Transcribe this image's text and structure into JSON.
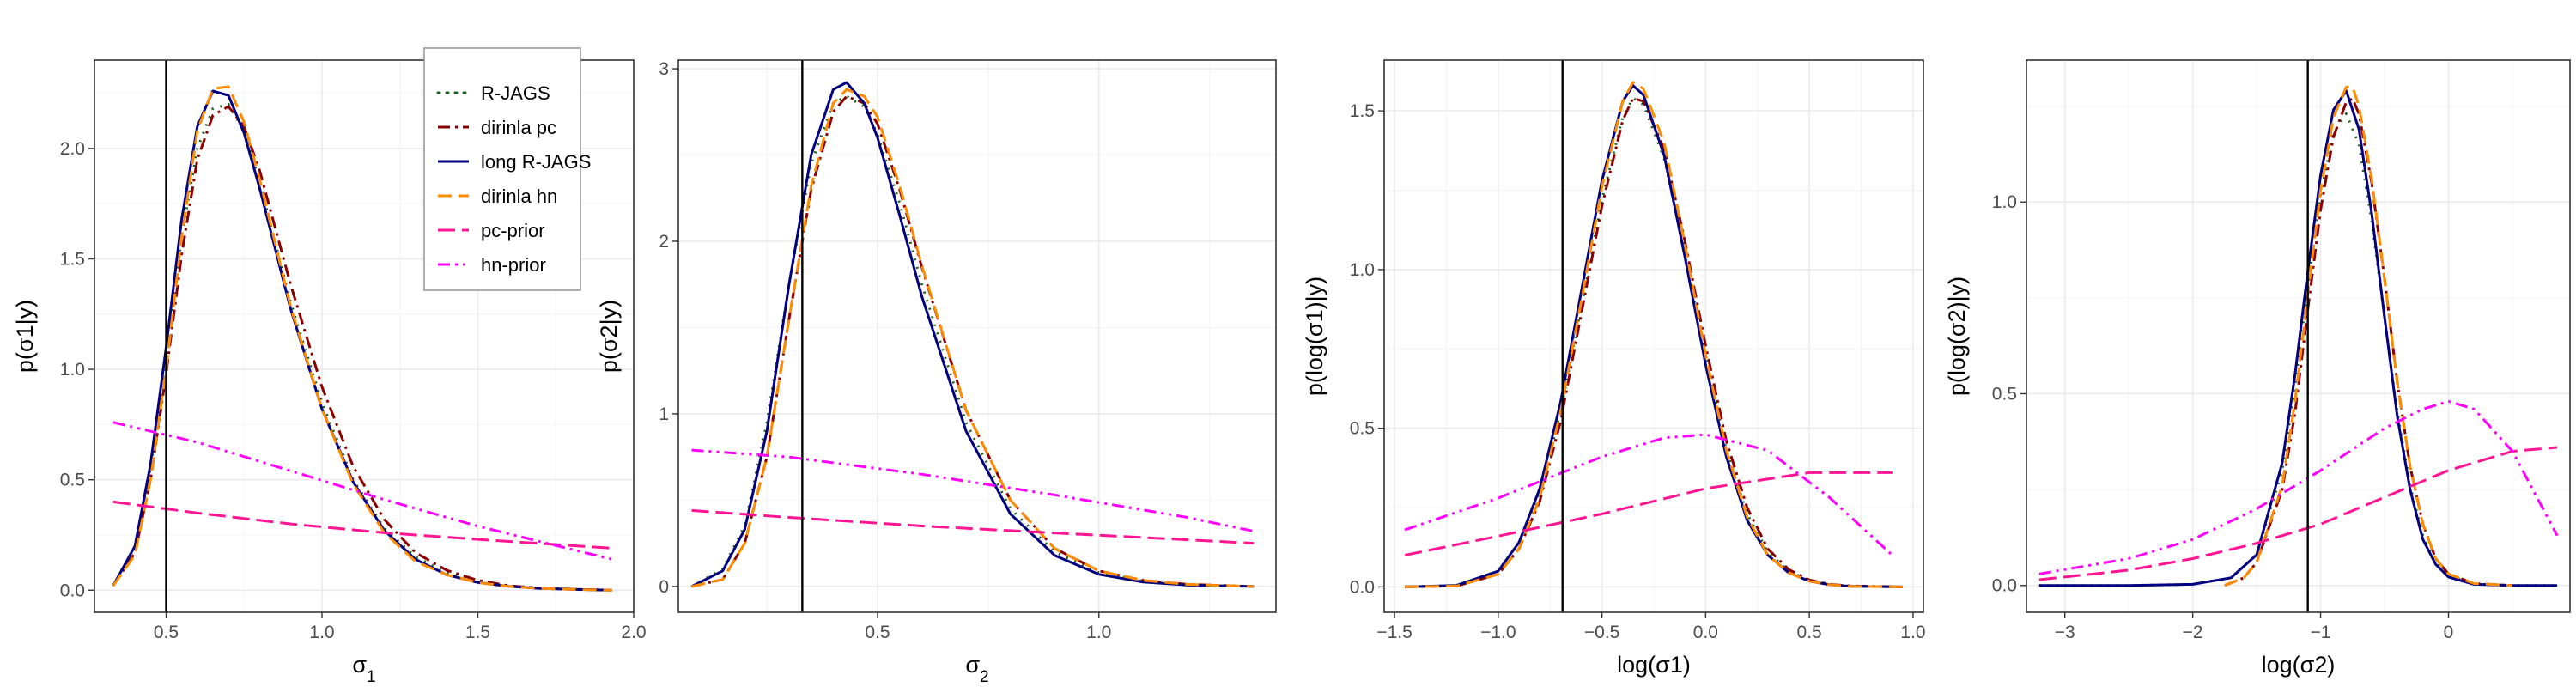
{
  "series_styles": [
    {
      "name": "R-JAGS",
      "color": "#1b5e20",
      "dash": "2 8",
      "width": 3
    },
    {
      "name": "dirinla pc",
      "color": "#8b0000",
      "dash": "14 6 3 6",
      "width": 3
    },
    {
      "name": "long R-JAGS",
      "color": "#000080",
      "dash": "",
      "width": 3
    },
    {
      "name": "dirinla hn",
      "color": "#ff8c00",
      "dash": "16 8",
      "width": 3
    },
    {
      "name": "pc-prior",
      "color": "#ff1493",
      "dash": "20 8",
      "width": 3
    },
    {
      "name": "hn-prior",
      "color": "#ff00ff",
      "dash": "14 6 3 6 3 6",
      "width": 3
    }
  ],
  "chart_data": [
    {
      "type": "line",
      "xlabel_main": "σ",
      "xlabel_sub": "1",
      "ylabel": "p(σ1|y)",
      "xlim": [
        0.27,
        2.0
      ],
      "ylim": [
        -0.1,
        2.4
      ],
      "xticks": [
        0.5,
        1.0,
        1.5,
        2.0
      ],
      "xtick_labels": [
        "0.5",
        "1.0",
        "1.5",
        "2.0"
      ],
      "yticks": [
        0.0,
        0.5,
        1.0,
        1.5,
        2.0
      ],
      "ytick_labels": [
        "0.0",
        "0.5",
        "1.0",
        "1.5",
        "2.0"
      ],
      "vline": 0.5,
      "legend": {
        "position": "top-right",
        "entries": [
          "R-JAGS",
          "dirinla pc",
          "long R-JAGS",
          "dirinla hn",
          "pc-prior",
          "hn-prior"
        ]
      },
      "series": [
        {
          "name": "R-JAGS",
          "x": [
            0.33,
            0.4,
            0.45,
            0.5,
            0.55,
            0.6,
            0.65,
            0.7,
            0.75,
            0.8,
            0.9,
            1.0,
            1.1,
            1.2,
            1.3,
            1.4,
            1.5,
            1.6,
            1.7,
            1.8,
            1.93
          ],
          "y": [
            0.02,
            0.2,
            0.55,
            1.05,
            1.6,
            2.0,
            2.18,
            2.2,
            2.08,
            1.85,
            1.3,
            0.85,
            0.5,
            0.28,
            0.15,
            0.08,
            0.04,
            0.02,
            0.01,
            0.005,
            0.0
          ]
        },
        {
          "name": "dirinla pc",
          "x": [
            0.33,
            0.4,
            0.45,
            0.5,
            0.55,
            0.6,
            0.65,
            0.7,
            0.75,
            0.8,
            0.9,
            1.0,
            1.1,
            1.2,
            1.3,
            1.4,
            1.5,
            1.6,
            1.7,
            1.8,
            1.93
          ],
          "y": [
            0.02,
            0.17,
            0.5,
            0.98,
            1.52,
            1.95,
            2.15,
            2.19,
            2.1,
            1.9,
            1.38,
            0.92,
            0.56,
            0.32,
            0.17,
            0.09,
            0.045,
            0.02,
            0.01,
            0.005,
            0.0
          ]
        },
        {
          "name": "long R-JAGS",
          "x": [
            0.33,
            0.4,
            0.45,
            0.5,
            0.55,
            0.6,
            0.65,
            0.7,
            0.75,
            0.8,
            0.9,
            1.0,
            1.1,
            1.2,
            1.3,
            1.4,
            1.5,
            1.6,
            1.7,
            1.8,
            1.93
          ],
          "y": [
            0.02,
            0.2,
            0.57,
            1.1,
            1.68,
            2.1,
            2.26,
            2.24,
            2.07,
            1.82,
            1.27,
            0.82,
            0.49,
            0.27,
            0.14,
            0.07,
            0.035,
            0.018,
            0.008,
            0.004,
            0.0
          ]
        },
        {
          "name": "dirinla hn",
          "x": [
            0.33,
            0.4,
            0.45,
            0.5,
            0.55,
            0.6,
            0.65,
            0.7,
            0.75,
            0.8,
            0.9,
            1.0,
            1.1,
            1.2,
            1.3,
            1.4,
            1.5,
            1.6,
            1.7,
            1.8,
            1.93
          ],
          "y": [
            0.02,
            0.16,
            0.5,
            1.0,
            1.6,
            2.08,
            2.27,
            2.28,
            2.12,
            1.86,
            1.28,
            0.82,
            0.48,
            0.26,
            0.13,
            0.07,
            0.035,
            0.017,
            0.008,
            0.004,
            0.0
          ]
        },
        {
          "name": "pc-prior",
          "x": [
            0.33,
            0.6,
            0.9,
            1.2,
            1.5,
            1.93
          ],
          "y": [
            0.4,
            0.35,
            0.3,
            0.26,
            0.23,
            0.19
          ]
        },
        {
          "name": "hn-prior",
          "x": [
            0.33,
            0.6,
            0.9,
            1.2,
            1.5,
            1.93
          ],
          "y": [
            0.76,
            0.67,
            0.54,
            0.41,
            0.29,
            0.14
          ]
        }
      ]
    },
    {
      "type": "line",
      "xlabel_main": "σ",
      "xlabel_sub": "2",
      "ylabel": "p(σ2|y)",
      "xlim": [
        0.05,
        1.4
      ],
      "ylim": [
        -0.15,
        3.05
      ],
      "xticks": [
        0.5,
        1.0
      ],
      "xtick_labels": [
        "0.5",
        "1.0"
      ],
      "yticks": [
        0,
        1,
        2,
        3
      ],
      "ytick_labels": [
        "0",
        "1",
        "2",
        "3"
      ],
      "vline": 0.33,
      "legend": null,
      "series": [
        {
          "name": "R-JAGS",
          "x": [
            0.08,
            0.15,
            0.2,
            0.25,
            0.3,
            0.35,
            0.4,
            0.43,
            0.47,
            0.5,
            0.55,
            0.6,
            0.7,
            0.8,
            0.9,
            1.0,
            1.1,
            1.2,
            1.35
          ],
          "y": [
            0.0,
            0.1,
            0.35,
            0.95,
            1.75,
            2.45,
            2.8,
            2.84,
            2.78,
            2.62,
            2.22,
            1.75,
            0.95,
            0.45,
            0.2,
            0.08,
            0.03,
            0.01,
            0.0
          ]
        },
        {
          "name": "dirinla pc",
          "x": [
            0.08,
            0.15,
            0.2,
            0.25,
            0.3,
            0.35,
            0.4,
            0.43,
            0.47,
            0.5,
            0.55,
            0.6,
            0.7,
            0.8,
            0.9,
            1.0,
            1.1,
            1.2,
            1.35
          ],
          "y": [
            0.0,
            0.04,
            0.25,
            0.75,
            1.55,
            2.3,
            2.75,
            2.84,
            2.8,
            2.68,
            2.3,
            1.85,
            1.02,
            0.5,
            0.22,
            0.09,
            0.035,
            0.012,
            0.0
          ]
        },
        {
          "name": "long R-JAGS",
          "x": [
            0.08,
            0.15,
            0.2,
            0.25,
            0.3,
            0.35,
            0.4,
            0.43,
            0.47,
            0.5,
            0.55,
            0.6,
            0.7,
            0.8,
            0.9,
            1.0,
            1.1,
            1.2,
            1.35
          ],
          "y": [
            0.0,
            0.09,
            0.33,
            0.9,
            1.75,
            2.5,
            2.88,
            2.92,
            2.8,
            2.6,
            2.15,
            1.68,
            0.9,
            0.42,
            0.18,
            0.07,
            0.025,
            0.008,
            0.0
          ]
        },
        {
          "name": "dirinla hn",
          "x": [
            0.08,
            0.15,
            0.2,
            0.25,
            0.3,
            0.35,
            0.4,
            0.43,
            0.47,
            0.5,
            0.55,
            0.6,
            0.7,
            0.8,
            0.9,
            1.0,
            1.1,
            1.2,
            1.35
          ],
          "y": [
            0.0,
            0.04,
            0.25,
            0.75,
            1.55,
            2.32,
            2.8,
            2.88,
            2.84,
            2.72,
            2.32,
            1.86,
            1.02,
            0.5,
            0.22,
            0.09,
            0.035,
            0.012,
            0.0
          ]
        },
        {
          "name": "pc-prior",
          "x": [
            0.08,
            0.3,
            0.6,
            0.9,
            1.2,
            1.35
          ],
          "y": [
            0.44,
            0.4,
            0.35,
            0.31,
            0.27,
            0.25
          ]
        },
        {
          "name": "hn-prior",
          "x": [
            0.08,
            0.3,
            0.6,
            0.9,
            1.2,
            1.35
          ],
          "y": [
            0.79,
            0.75,
            0.65,
            0.53,
            0.4,
            0.32
          ]
        }
      ]
    },
    {
      "type": "line",
      "xlabel_main": "log(σ1)",
      "xlabel_sub": "",
      "ylabel": "p(log(σ1)|y)",
      "xlim": [
        -1.55,
        1.05
      ],
      "ylim": [
        -0.08,
        1.66
      ],
      "xticks": [
        -1.5,
        -1.0,
        -0.5,
        0.0,
        0.5,
        1.0
      ],
      "xtick_labels": [
        "−1.5",
        "−1.0",
        "−0.5",
        "0.0",
        "0.5",
        "1.0"
      ],
      "yticks": [
        0.0,
        0.5,
        1.0,
        1.5
      ],
      "ytick_labels": [
        "0.0",
        "0.5",
        "1.0",
        "1.5"
      ],
      "vline": -0.69,
      "legend": null,
      "series": [
        {
          "name": "R-JAGS",
          "x": [
            -1.45,
            -1.2,
            -1.0,
            -0.9,
            -0.8,
            -0.7,
            -0.6,
            -0.5,
            -0.4,
            -0.35,
            -0.3,
            -0.2,
            -0.1,
            0.0,
            0.1,
            0.2,
            0.3,
            0.4,
            0.5,
            0.6,
            0.7,
            0.95
          ],
          "y": [
            0.0,
            0.005,
            0.05,
            0.14,
            0.3,
            0.55,
            0.88,
            1.22,
            1.48,
            1.54,
            1.52,
            1.35,
            1.05,
            0.72,
            0.43,
            0.23,
            0.11,
            0.05,
            0.02,
            0.008,
            0.003,
            0.0
          ]
        },
        {
          "name": "dirinla pc",
          "x": [
            -1.45,
            -1.2,
            -1.0,
            -0.9,
            -0.8,
            -0.7,
            -0.6,
            -0.5,
            -0.4,
            -0.35,
            -0.3,
            -0.2,
            -0.1,
            0.0,
            0.1,
            0.2,
            0.3,
            0.4,
            0.5,
            0.6,
            0.7,
            0.95
          ],
          "y": [
            0.0,
            0.003,
            0.04,
            0.12,
            0.27,
            0.52,
            0.86,
            1.2,
            1.47,
            1.54,
            1.53,
            1.38,
            1.09,
            0.76,
            0.46,
            0.25,
            0.12,
            0.055,
            0.022,
            0.008,
            0.003,
            0.0
          ]
        },
        {
          "name": "long R-JAGS",
          "x": [
            -1.45,
            -1.2,
            -1.0,
            -0.9,
            -0.8,
            -0.7,
            -0.6,
            -0.5,
            -0.4,
            -0.35,
            -0.3,
            -0.2,
            -0.1,
            0.0,
            0.1,
            0.2,
            0.3,
            0.4,
            0.5,
            0.6,
            0.7,
            0.95
          ],
          "y": [
            0.0,
            0.005,
            0.05,
            0.14,
            0.31,
            0.58,
            0.93,
            1.28,
            1.53,
            1.58,
            1.55,
            1.36,
            1.04,
            0.7,
            0.41,
            0.21,
            0.1,
            0.045,
            0.018,
            0.007,
            0.002,
            0.0
          ]
        },
        {
          "name": "dirinla hn",
          "x": [
            -1.45,
            -1.2,
            -1.0,
            -0.9,
            -0.8,
            -0.7,
            -0.6,
            -0.5,
            -0.4,
            -0.35,
            -0.3,
            -0.2,
            -0.1,
            0.0,
            0.1,
            0.2,
            0.3,
            0.4,
            0.5,
            0.6,
            0.7,
            0.95
          ],
          "y": [
            0.0,
            0.003,
            0.04,
            0.12,
            0.28,
            0.55,
            0.9,
            1.26,
            1.53,
            1.59,
            1.57,
            1.4,
            1.08,
            0.73,
            0.43,
            0.22,
            0.1,
            0.045,
            0.018,
            0.007,
            0.002,
            0.0
          ]
        },
        {
          "name": "pc-prior",
          "x": [
            -1.45,
            -1.0,
            -0.5,
            0.0,
            0.5,
            0.9
          ],
          "y": [
            0.1,
            0.16,
            0.23,
            0.31,
            0.36,
            0.36
          ]
        },
        {
          "name": "hn-prior",
          "x": [
            -1.45,
            -1.0,
            -0.5,
            -0.2,
            0.0,
            0.3,
            0.6,
            0.9
          ],
          "y": [
            0.18,
            0.28,
            0.41,
            0.47,
            0.48,
            0.43,
            0.28,
            0.1
          ]
        }
      ]
    },
    {
      "type": "line",
      "xlabel_main": "log(σ2)",
      "xlabel_sub": "",
      "ylabel": "p(log(σ2)|y)",
      "xlim": [
        -3.3,
        0.95
      ],
      "ylim": [
        -0.07,
        1.37
      ],
      "xticks": [
        -3,
        -2,
        -1,
        0
      ],
      "xtick_labels": [
        "−3",
        "−2",
        "−1",
        "0"
      ],
      "yticks": [
        0.0,
        0.5,
        1.0
      ],
      "ytick_labels": [
        "0.0",
        "0.5",
        "1.0"
      ],
      "vline": -1.1,
      "legend": null,
      "series": [
        {
          "name": "R-JAGS",
          "x": [
            -3.2,
            -2.5,
            -2.0,
            -1.7,
            -1.5,
            -1.3,
            -1.2,
            -1.1,
            -1.0,
            -0.9,
            -0.8,
            -0.7,
            -0.6,
            -0.5,
            -0.4,
            -0.3,
            -0.2,
            -0.1,
            0.0,
            0.2,
            0.5,
            0.85
          ],
          "y": [
            0.0,
            0.0,
            0.003,
            0.02,
            0.08,
            0.3,
            0.52,
            0.78,
            1.02,
            1.18,
            1.23,
            1.15,
            0.95,
            0.7,
            0.45,
            0.26,
            0.13,
            0.06,
            0.025,
            0.004,
            0.0,
            0.0
          ]
        },
        {
          "name": "dirinla pc",
          "x": [
            -1.75,
            -1.6,
            -1.5,
            -1.3,
            -1.2,
            -1.1,
            -1.0,
            -0.9,
            -0.8,
            -0.75,
            -0.7,
            -0.6,
            -0.5,
            -0.4,
            -0.3,
            -0.2,
            -0.1,
            0.0,
            0.2,
            0.5
          ],
          "y": [
            0.0,
            0.02,
            0.06,
            0.25,
            0.45,
            0.72,
            0.98,
            1.17,
            1.26,
            1.27,
            1.23,
            1.05,
            0.8,
            0.53,
            0.31,
            0.16,
            0.07,
            0.03,
            0.005,
            0.0
          ]
        },
        {
          "name": "long R-JAGS",
          "x": [
            -3.2,
            -2.5,
            -2.0,
            -1.7,
            -1.5,
            -1.3,
            -1.2,
            -1.1,
            -1.0,
            -0.9,
            -0.8,
            -0.7,
            -0.6,
            -0.5,
            -0.4,
            -0.3,
            -0.2,
            -0.1,
            0.0,
            0.2,
            0.5,
            0.85
          ],
          "y": [
            0.0,
            0.0,
            0.003,
            0.02,
            0.08,
            0.32,
            0.55,
            0.82,
            1.07,
            1.24,
            1.29,
            1.19,
            0.97,
            0.7,
            0.44,
            0.25,
            0.12,
            0.055,
            0.022,
            0.003,
            0.0,
            0.0
          ]
        },
        {
          "name": "dirinla hn",
          "x": [
            -1.75,
            -1.6,
            -1.5,
            -1.3,
            -1.2,
            -1.1,
            -1.0,
            -0.9,
            -0.8,
            -0.75,
            -0.7,
            -0.6,
            -0.5,
            -0.4,
            -0.3,
            -0.2,
            -0.1,
            0.0,
            0.2,
            0.5
          ],
          "y": [
            0.0,
            0.02,
            0.06,
            0.26,
            0.48,
            0.76,
            1.03,
            1.22,
            1.3,
            1.3,
            1.25,
            1.06,
            0.8,
            0.53,
            0.31,
            0.16,
            0.07,
            0.03,
            0.005,
            0.0
          ]
        },
        {
          "name": "pc-prior",
          "x": [
            -3.2,
            -2.5,
            -2.0,
            -1.5,
            -1.0,
            -0.5,
            0.0,
            0.5,
            0.85
          ],
          "y": [
            0.015,
            0.04,
            0.07,
            0.11,
            0.16,
            0.23,
            0.3,
            0.35,
            0.36
          ]
        },
        {
          "name": "hn-prior",
          "x": [
            -3.2,
            -2.5,
            -2.0,
            -1.5,
            -1.0,
            -0.5,
            -0.2,
            0.0,
            0.2,
            0.5,
            0.85
          ],
          "y": [
            0.03,
            0.07,
            0.12,
            0.2,
            0.3,
            0.41,
            0.46,
            0.48,
            0.46,
            0.35,
            0.13
          ]
        }
      ]
    }
  ]
}
